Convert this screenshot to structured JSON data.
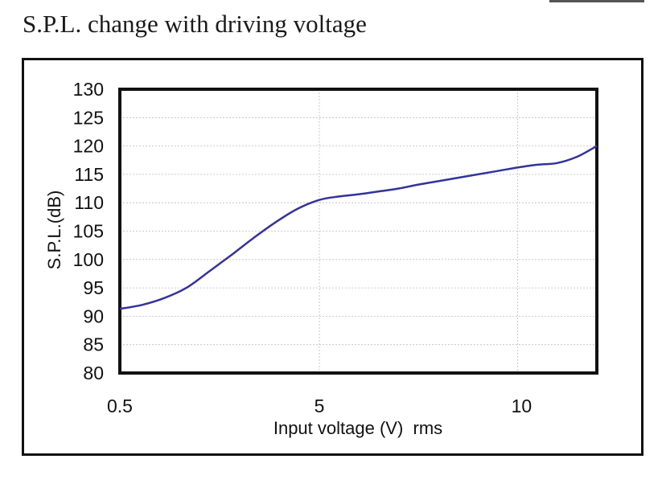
{
  "title": "S.P.L. change with driving voltage",
  "chart_data": {
    "type": "line",
    "title": "S.P.L. change with driving voltage",
    "xlabel": "Input voltage (V)  rms",
    "ylabel": "S.P.L.(dB)",
    "ylim": [
      80,
      130
    ],
    "yticks": [
      "130",
      "125",
      "120",
      "115",
      "110",
      "105",
      "100",
      "95",
      "90",
      "85",
      "80"
    ],
    "xticks": [
      "0.5",
      "5",
      "10"
    ],
    "grid": true,
    "series": [
      {
        "color": "#33339a",
        "points": [
          {
            "x": 0.5,
            "y": 91.3
          },
          {
            "x": 1.0,
            "y": 92.0
          },
          {
            "x": 1.5,
            "y": 93.2
          },
          {
            "x": 2.0,
            "y": 95.0
          },
          {
            "x": 2.5,
            "y": 97.8
          },
          {
            "x": 3.0,
            "y": 100.7
          },
          {
            "x": 3.5,
            "y": 103.7
          },
          {
            "x": 4.0,
            "y": 106.5
          },
          {
            "x": 4.5,
            "y": 108.9
          },
          {
            "x": 5.0,
            "y": 110.5
          },
          {
            "x": 5.5,
            "y": 111.1
          },
          {
            "x": 6.0,
            "y": 111.5
          },
          {
            "x": 6.5,
            "y": 112.0
          },
          {
            "x": 7.0,
            "y": 112.5
          },
          {
            "x": 7.5,
            "y": 113.2
          },
          {
            "x": 8.0,
            "y": 113.8
          },
          {
            "x": 8.5,
            "y": 114.4
          },
          {
            "x": 9.0,
            "y": 115.0
          },
          {
            "x": 9.5,
            "y": 115.6
          },
          {
            "x": 10.0,
            "y": 116.2
          },
          {
            "x": 10.5,
            "y": 116.7
          },
          {
            "x": 11.0,
            "y": 117.0
          },
          {
            "x": 11.5,
            "y": 118.1
          },
          {
            "x": 12.0,
            "y": 120.0
          }
        ]
      }
    ]
  }
}
